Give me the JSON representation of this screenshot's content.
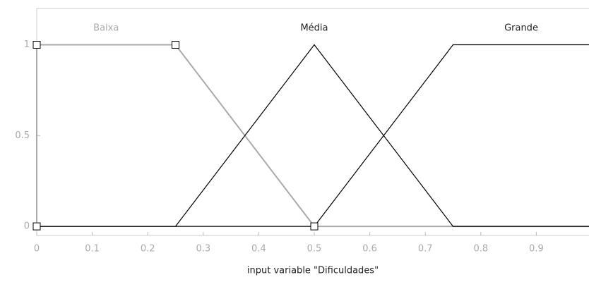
{
  "chart_data": {
    "type": "line",
    "xlabel": "input variable \"Dificuldades\"",
    "series": [
      {
        "name": "Baixa",
        "color": "#aaaaaa",
        "x": [
          0,
          0,
          0.25,
          0.5,
          1
        ],
        "values": [
          0,
          1,
          1,
          0,
          0
        ]
      },
      {
        "name": "Média",
        "color": "#000000",
        "x": [
          0,
          0.25,
          0.5,
          0.75,
          1
        ],
        "values": [
          0,
          0,
          1,
          0,
          0
        ]
      },
      {
        "name": "Grande",
        "color": "#000000",
        "x": [
          0,
          0.5,
          0.75,
          1
        ],
        "values": [
          0,
          0,
          1,
          1
        ]
      }
    ],
    "xlim": [
      0,
      1
    ],
    "xticks": [
      0,
      0.1,
      0.2,
      0.3,
      0.4,
      0.5,
      0.6,
      0.7,
      0.8,
      0.9
    ],
    "ylim": [
      -0.05,
      1.2
    ],
    "yticks": [
      0,
      0.5,
      1
    ]
  }
}
